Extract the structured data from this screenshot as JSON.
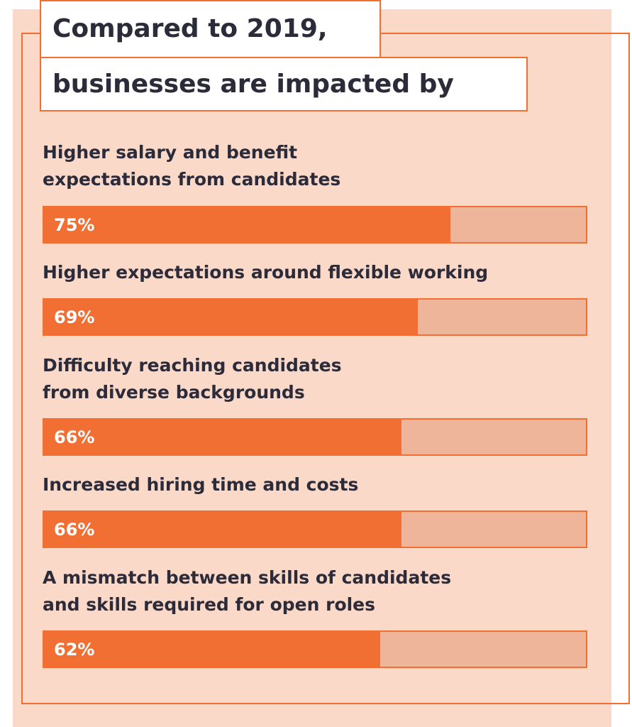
{
  "chart_data": {
    "type": "bar",
    "title": [
      "Compared to 2019,",
      "businesses are impacted by"
    ],
    "categories": [
      "Higher salary and benefit\nexpectations from candidates",
      "Higher expectations around flexible working",
      "Difficulty reaching candidates\nfrom diverse backgrounds",
      "Increased hiring time and costs",
      "A mismatch between skills of candidates\nand skills required for open roles"
    ],
    "values": [
      75,
      69,
      66,
      66,
      62
    ],
    "value_labels": [
      "75%",
      "69%",
      "66%",
      "66%",
      "62%"
    ],
    "ylim": [
      0,
      100
    ],
    "orientation": "horizontal"
  },
  "colors": {
    "bar_fill": "#f26f34",
    "bar_track": "#eeb59b",
    "background": "#fbd9c9",
    "text": "#2b2b3a"
  }
}
